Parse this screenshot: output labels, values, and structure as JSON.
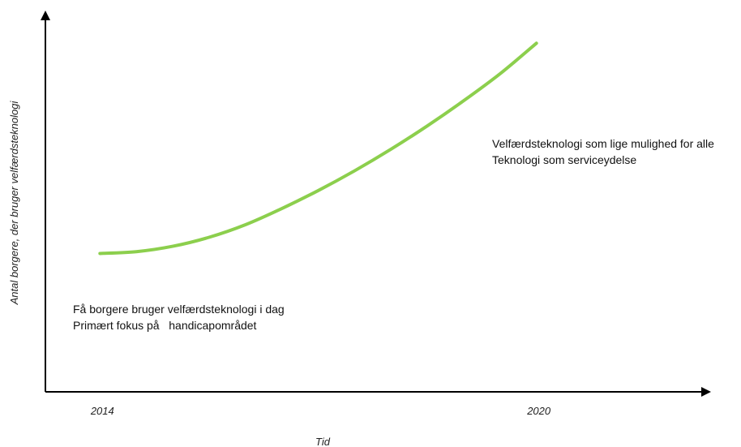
{
  "chart_data": {
    "type": "line",
    "title": "",
    "xlabel": "Tid",
    "ylabel": "Antal borgere, der bruger velfærdsteknologi",
    "x_tick_labels": [
      {
        "x": 2014,
        "label": "2014"
      },
      {
        "x": 2020,
        "label": "2020"
      }
    ],
    "xlim": [
      2013.25,
      2022.4
    ],
    "ylim": [
      0,
      1
    ],
    "series": [
      {
        "x": [
          2014,
          2014.5,
          2015,
          2015.5,
          2016,
          2016.5,
          2017,
          2017.5,
          2018,
          2018.5,
          2019,
          2019.5,
          2020
        ],
        "y": [
          0.385,
          0.39,
          0.405,
          0.43,
          0.465,
          0.51,
          0.56,
          0.615,
          0.675,
          0.74,
          0.81,
          0.885,
          0.97
        ],
        "color": "#8ccf4d"
      }
    ],
    "annotations": [
      {
        "x": 2014,
        "y": 0.25,
        "lines": [
          "Få borgere bruger velfærdsteknologi i dag",
          "Primært fokus på   handicapområdet"
        ]
      },
      {
        "x": 2019.5,
        "y": 0.81,
        "lines": [
          "Velfærdsteknologi som lige mulighed for alle",
          "Teknologi som serviceydelse"
        ]
      }
    ],
    "grid": false,
    "legend": "none",
    "axis_color": "#000000"
  }
}
